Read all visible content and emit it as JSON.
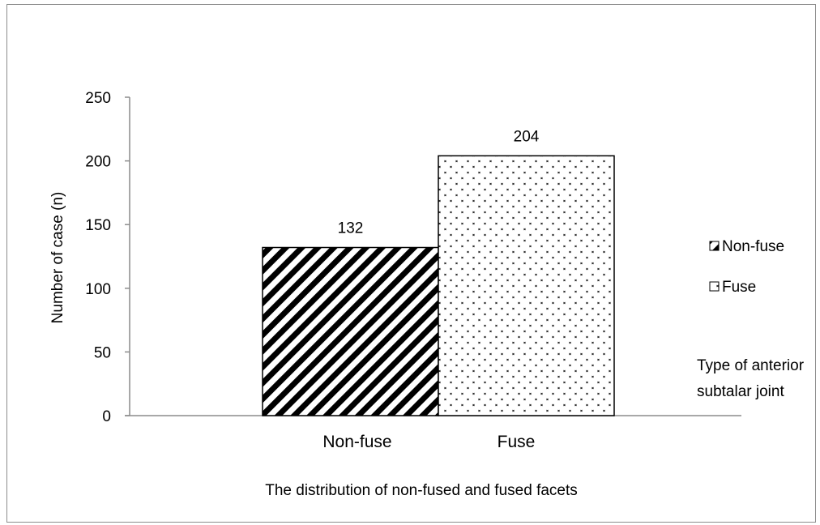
{
  "chart_data": {
    "type": "bar",
    "categories": [
      "Non-fuse",
      "Fuse"
    ],
    "values": [
      132,
      204
    ],
    "data_labels": [
      "132",
      "204"
    ],
    "ylabel": "Number of case (n)",
    "xlabel": "The distribution of non-fused and fused facets",
    "ylim": [
      0,
      250
    ],
    "yticks": [
      "0",
      "50",
      "100",
      "150",
      "200",
      "250"
    ],
    "ytick_values": [
      0,
      50,
      100,
      150,
      200,
      250
    ],
    "grid": false,
    "legend": {
      "position": "right",
      "entries": [
        {
          "label": "Non-fuse",
          "pattern": "diagonal-stripes"
        },
        {
          "label": "Fuse",
          "pattern": "dots"
        }
      ],
      "title_lines": [
        "Type of anterior",
        "subtalar joint"
      ]
    }
  }
}
